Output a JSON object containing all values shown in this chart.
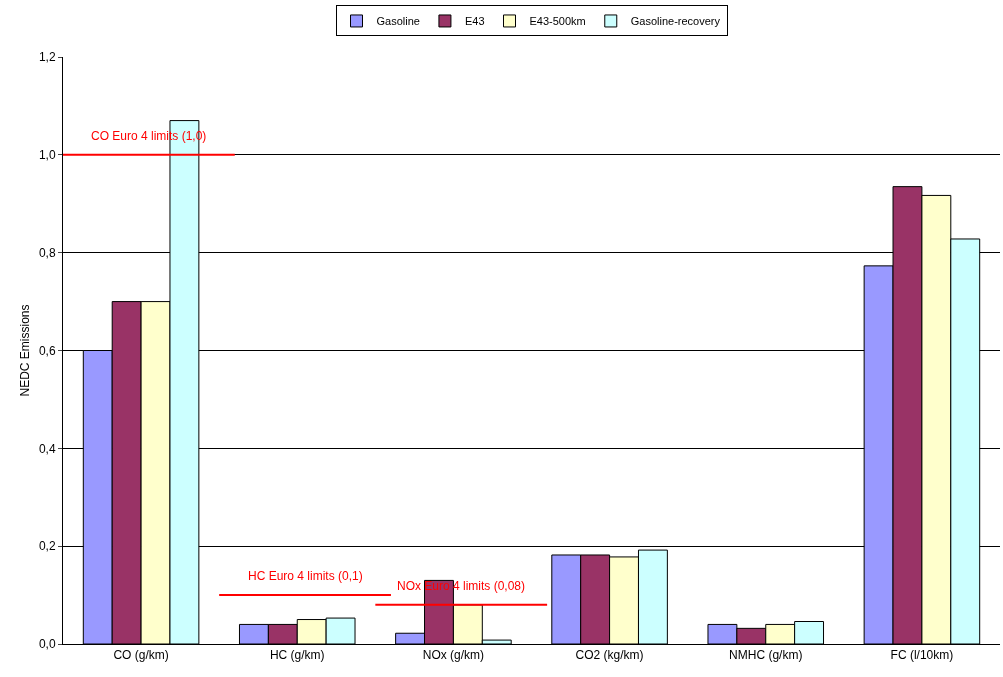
{
  "chart_data": {
    "type": "bar",
    "ylabel": "NEDC Emissions",
    "categories": [
      "CO (g/km)",
      "HC (g/km)",
      "NOx (g/km)",
      "CO2 (kg/km)",
      "NMHC (g/km)",
      "FC (l/10km)"
    ],
    "series": [
      {
        "name": "Gasoline",
        "color": "#9999ff",
        "values": [
          0.6,
          0.04,
          0.022,
          0.182,
          0.04,
          0.773
        ]
      },
      {
        "name": "E43",
        "color": "#993366",
        "values": [
          0.7,
          0.04,
          0.13,
          0.182,
          0.032,
          0.935
        ]
      },
      {
        "name": "E43-500km",
        "color": "#ffffcc",
        "values": [
          0.7,
          0.05,
          0.08,
          0.178,
          0.04,
          0.917
        ]
      },
      {
        "name": "Gasoline-recovery",
        "color": "#ccffff",
        "values": [
          1.07,
          0.053,
          0.008,
          0.192,
          0.046,
          0.828
        ]
      }
    ],
    "ylim": [
      0,
      1.2
    ],
    "yticks": [
      {
        "value": 0,
        "label": "0,0"
      },
      {
        "value": 0.2,
        "label": "0,2"
      },
      {
        "value": 0.4,
        "label": "0,4"
      },
      {
        "value": 0.6,
        "label": "0,6"
      },
      {
        "value": 0.8,
        "label": "0,8"
      },
      {
        "value": 1.0,
        "label": "1,0"
      },
      {
        "value": 1.2,
        "label": "1,2"
      }
    ],
    "grid": "y",
    "legend": "top",
    "ref_lines": [
      {
        "axis": "y",
        "value": 1.0,
        "label": "CO Euro 4 limits (1,0)",
        "color": "#ff0000"
      },
      {
        "axis": "y",
        "value": 0.1,
        "label": "HC Euro 4 limits (0,1)",
        "color": "#ff0000"
      },
      {
        "axis": "y",
        "value": 0.08,
        "label": "NOx Euro 4 limits (0,08)",
        "color": "#ff0000"
      }
    ]
  }
}
